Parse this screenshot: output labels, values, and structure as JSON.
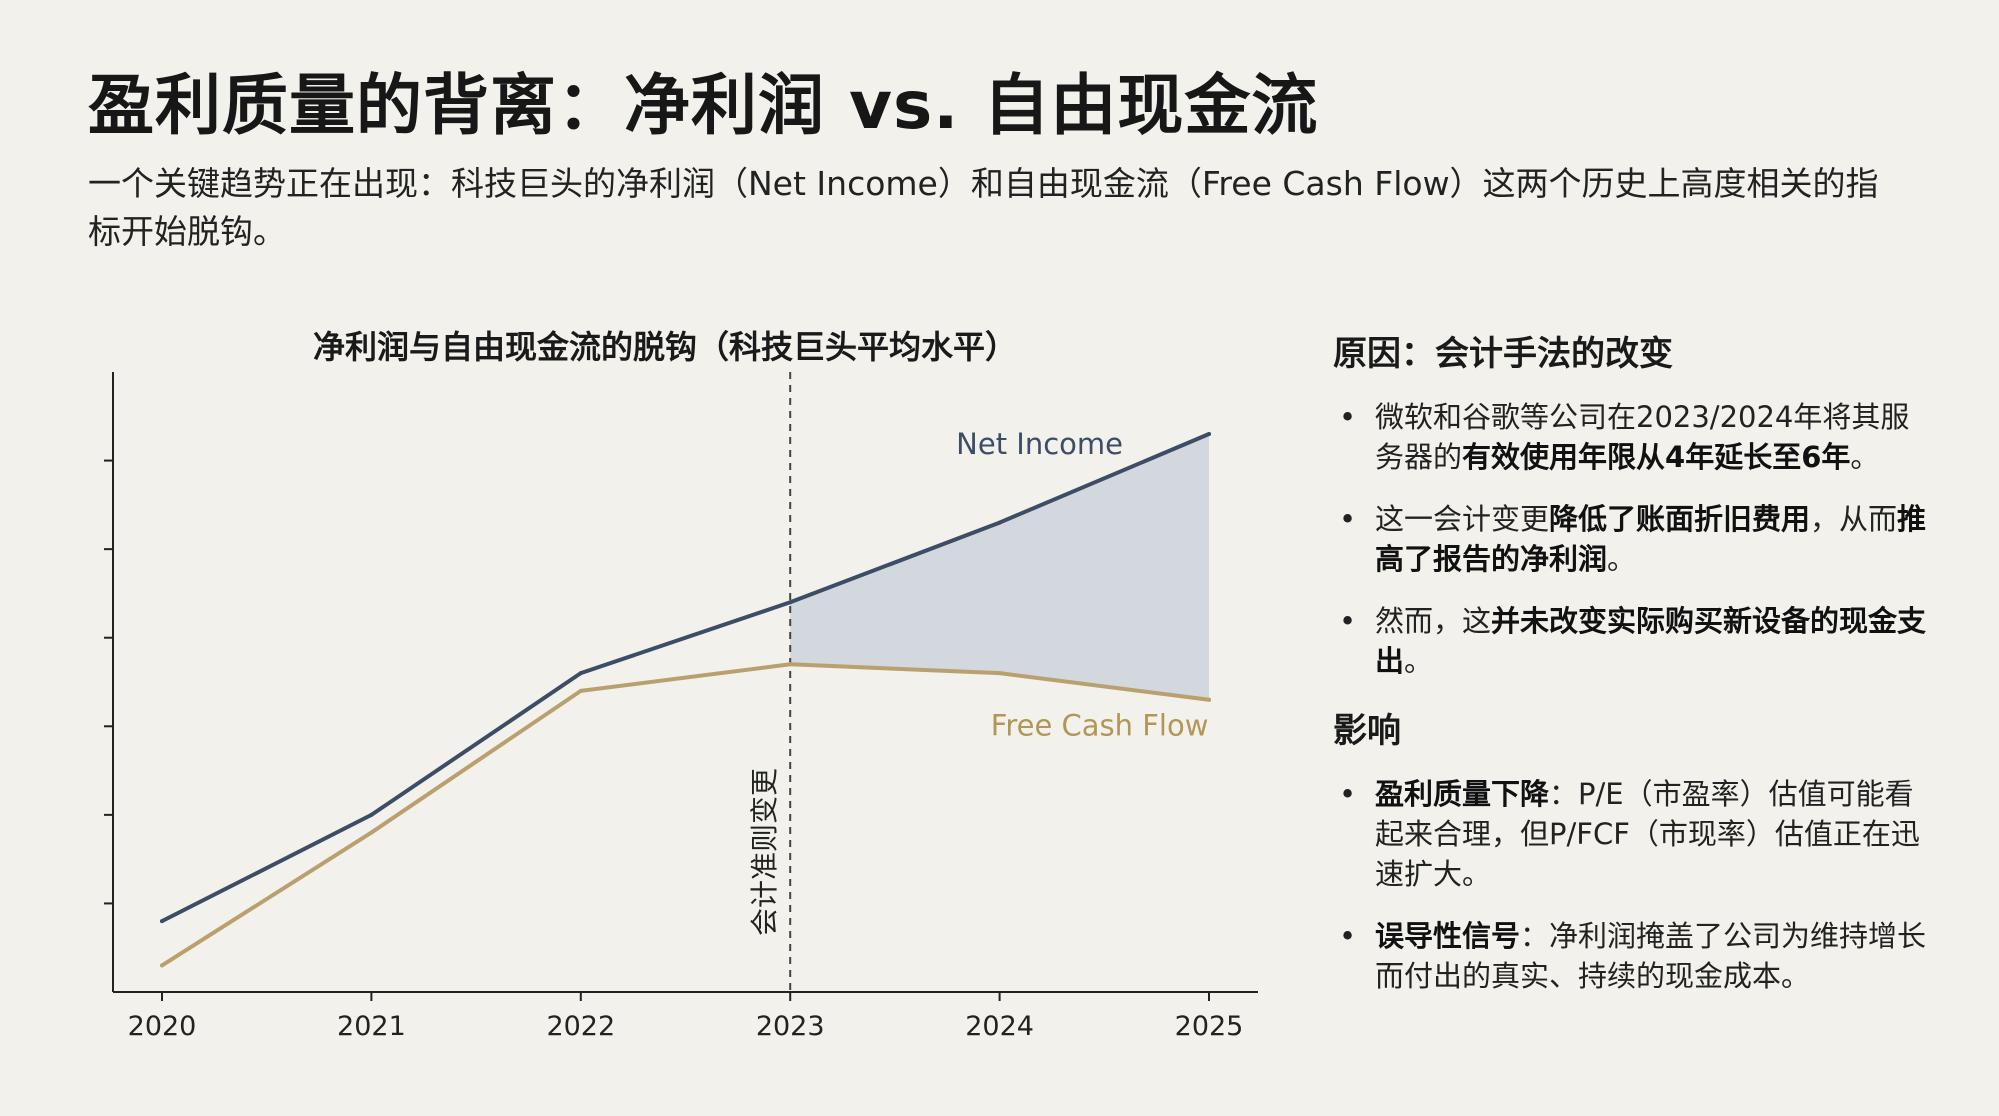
{
  "header": {
    "title": "盈利质量的背离：净利润 vs. 自由现金流",
    "subtitle": "一个关键趋势正在出现：科技巨头的净利润（Net Income）和自由现金流（Free Cash Flow）这两个历史上高度相关的指标开始脱钩。"
  },
  "chart_data": {
    "type": "line",
    "title": "净利润与自由现金流的脱钩（科技巨头平均水平）",
    "x": [
      "2020",
      "2021",
      "2022",
      "2023",
      "2024",
      "2025"
    ],
    "series": [
      {
        "name": "Net Income",
        "values": [
          0.8,
          2.0,
          3.6,
          4.4,
          5.3,
          6.3
        ],
        "color": "#3d4d66"
      },
      {
        "name": "Free Cash Flow",
        "values": [
          0.3,
          1.8,
          3.4,
          3.7,
          3.6,
          3.3
        ],
        "color": "#b9a06e"
      }
    ],
    "ylim": [
      0,
      7
    ],
    "y_ticks_labeled": false,
    "grid": false,
    "shaded_gap": {
      "from": "2023",
      "to": "2025",
      "color": "#d3d7de"
    },
    "annotation": {
      "x": "2023",
      "label": "会计准则变更",
      "style": "dashed-vertical"
    },
    "xlabel": "",
    "ylabel": ""
  },
  "panel": {
    "reason": {
      "heading": "原因：会计手法的改变",
      "bullets": [
        {
          "parts": [
            {
              "t": "微软和谷歌等公司在2023/2024年将其服务器的"
            },
            {
              "t": "有效使用年限从4年延长至6年",
              "b": true
            },
            {
              "t": "。"
            }
          ]
        },
        {
          "parts": [
            {
              "t": "这一会计变更"
            },
            {
              "t": "降低了账面折旧费用",
              "b": true
            },
            {
              "t": "，从而"
            },
            {
              "t": "推高了报告的净利润",
              "b": true
            },
            {
              "t": "。"
            }
          ]
        },
        {
          "parts": [
            {
              "t": "然而，这"
            },
            {
              "t": "并未改变实际购买新设备的现金支出",
              "b": true
            },
            {
              "t": "。"
            }
          ]
        }
      ]
    },
    "impact": {
      "heading": "影响",
      "bullets": [
        {
          "parts": [
            {
              "t": "盈利质量下降",
              "b": true
            },
            {
              "t": "：P/E（市盈率）估值可能看起来合理，但P/FCF（市现率）估值正在迅速扩大。"
            }
          ]
        },
        {
          "parts": [
            {
              "t": "误导性信号",
              "b": true
            },
            {
              "t": "：净利润掩盖了公司为维持增长而付出的真实、持续的现金成本。"
            }
          ]
        }
      ]
    }
  }
}
